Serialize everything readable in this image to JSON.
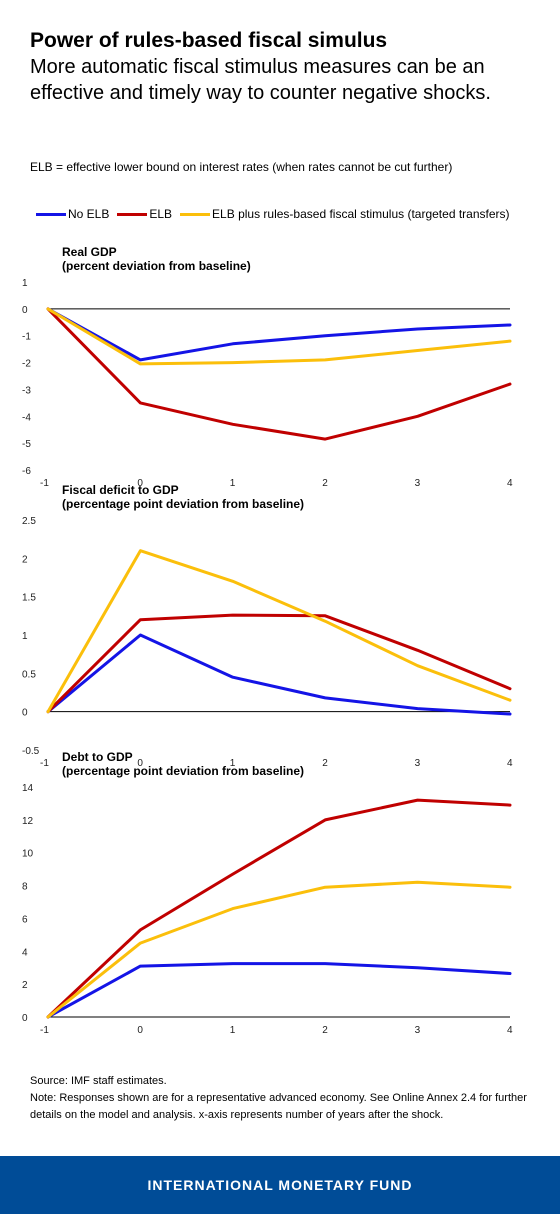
{
  "header": {
    "title": "Power of rules-based fiscal simulus",
    "subtitle": "More automatic fiscal stimulus measures can be an effective and timely way to counter negative shocks."
  },
  "note_elb": "ELB = effective lower bound on interest rates (when rates cannot be cut further)",
  "legend": [
    {
      "name": "No ELB",
      "color": "#1414e6"
    },
    {
      "name": "ELB",
      "color": "#c00000"
    },
    {
      "name": "ELB plus rules-based fiscal stimulus (targeted transfers)",
      "color": "#fbbf0b"
    }
  ],
  "chart_data": [
    {
      "type": "line",
      "title": "Real GDP",
      "subtitle": "(percent deviation from baseline)",
      "x": [
        -1,
        0,
        1,
        2,
        3,
        4
      ],
      "ylim": [
        -6,
        1
      ],
      "yticks": [
        1,
        0,
        -1,
        -2,
        -3,
        -4,
        -5,
        -6
      ],
      "series": [
        {
          "name": "No ELB",
          "color": "#1414e6",
          "values": [
            0,
            -1.9,
            -1.3,
            -1.0,
            -0.75,
            -0.6
          ]
        },
        {
          "name": "ELB",
          "color": "#c00000",
          "values": [
            0,
            -3.5,
            -4.3,
            -4.85,
            -4.0,
            -2.8
          ]
        },
        {
          "name": "ELB plus rules-based fiscal stimulus (targeted transfers)",
          "color": "#fbbf0b",
          "values": [
            0,
            -2.05,
            -2.0,
            -1.9,
            -1.55,
            -1.2
          ]
        }
      ]
    },
    {
      "type": "line",
      "title": "Fiscal deficit to GDP",
      "subtitle": "(percentage point deviation from baseline)",
      "x": [
        -1,
        0,
        1,
        2,
        3,
        4
      ],
      "ylim": [
        -0.5,
        2.5
      ],
      "yticks": [
        "2.5",
        "2",
        "1.5",
        "1",
        "0.5",
        "0",
        "-0.5"
      ],
      "series": [
        {
          "name": "No ELB",
          "color": "#1414e6",
          "values": [
            0,
            1.0,
            0.45,
            0.18,
            0.04,
            -0.03
          ]
        },
        {
          "name": "ELB",
          "color": "#c00000",
          "values": [
            0,
            1.2,
            1.26,
            1.25,
            0.8,
            0.3
          ]
        },
        {
          "name": "ELB plus rules-based fiscal stimulus (targeted transfers)",
          "color": "#fbbf0b",
          "values": [
            0,
            2.1,
            1.7,
            1.18,
            0.6,
            0.15
          ]
        }
      ]
    },
    {
      "type": "line",
      "title": "Debt to GDP",
      "subtitle": "(percentage point deviation from baseline)",
      "x": [
        -1,
        0,
        1,
        2,
        3,
        4
      ],
      "ylim": [
        0,
        14
      ],
      "yticks": [
        14,
        12,
        10,
        8,
        6,
        4,
        2,
        0
      ],
      "series": [
        {
          "name": "No ELB",
          "color": "#1414e6",
          "values": [
            0,
            3.1,
            3.25,
            3.25,
            3.0,
            2.65
          ]
        },
        {
          "name": "ELB",
          "color": "#c00000",
          "values": [
            0,
            5.3,
            8.7,
            12.0,
            13.2,
            12.9
          ]
        },
        {
          "name": "ELB plus rules-based fiscal stimulus (targeted transfers)",
          "color": "#fbbf0b",
          "values": [
            0,
            4.5,
            6.6,
            7.9,
            8.2,
            7.9
          ]
        }
      ]
    }
  ],
  "footnotes": {
    "source": "Source: IMF staff estimates.",
    "note": "Note: Responses shown are for a representative advanced economy. See Online Annex 2.4 for further details on the model and analysis. x-axis represents number of years after the shock."
  },
  "footer": {
    "text": "INTERNATIONAL MONETARY FUND"
  }
}
